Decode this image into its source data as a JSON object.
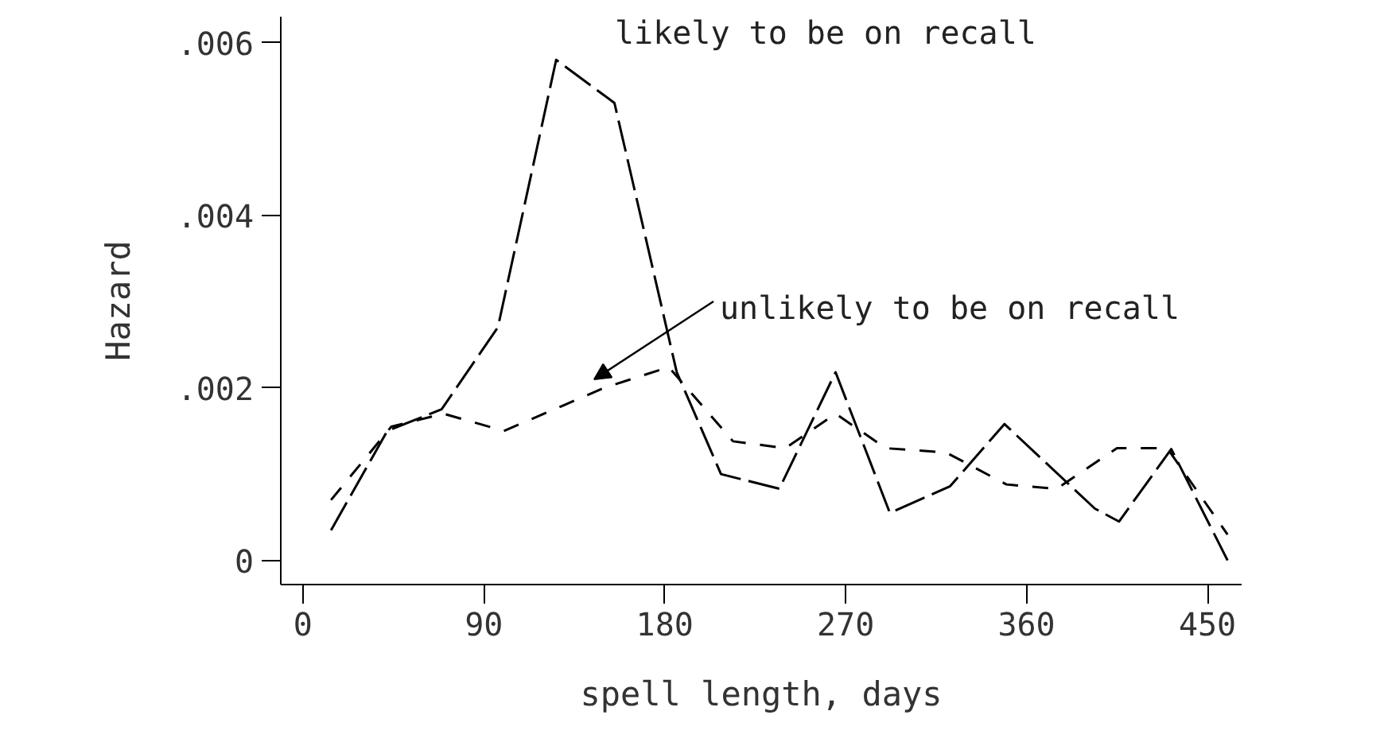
{
  "chart_data": {
    "type": "line",
    "xlabel": "spell length, days",
    "ylabel": "Hazard",
    "xlim": [
      -11,
      467
    ],
    "ylim": [
      -0.00028,
      0.0063
    ],
    "xticks": [
      0,
      90,
      180,
      270,
      360,
      450
    ],
    "yticks": [
      0,
      {
        "value": 0.002,
        "label": ".002"
      },
      {
        "value": 0.004,
        "label": ".004"
      },
      {
        "value": 0.006,
        "label": ".006"
      }
    ],
    "grid": false,
    "marker": "none",
    "series": [
      {
        "color": "#000000",
        "line_style": "dashed",
        "x": [
          14,
          42,
          69,
          97,
          126,
          155,
          186,
          208,
          237,
          265,
          292,
          322,
          349,
          394,
          406,
          432,
          460
        ],
        "values": [
          0.00035,
          0.0015,
          0.00175,
          0.0027,
          0.0058,
          0.0053,
          0.00218,
          0.001,
          0.00083,
          0.00218,
          0.00055,
          0.00086,
          0.00158,
          0.0006,
          0.00045,
          0.00129,
          0.0
        ]
      },
      {
        "color": "#000000",
        "line_style": "dotted",
        "x": [
          14,
          44,
          70,
          100,
          130,
          150,
          182,
          214,
          240,
          265,
          290,
          320,
          350,
          375,
          405,
          430,
          460
        ],
        "values": [
          0.0007,
          0.00155,
          0.0017,
          0.0015,
          0.0018,
          0.002,
          0.00224,
          0.00138,
          0.0013,
          0.0017,
          0.0013,
          0.00125,
          0.00088,
          0.00083,
          0.0013,
          0.0013,
          0.0003
        ]
      }
    ],
    "annotations": [
      "likely to be on recall",
      "unlikely to be on recall"
    ]
  }
}
